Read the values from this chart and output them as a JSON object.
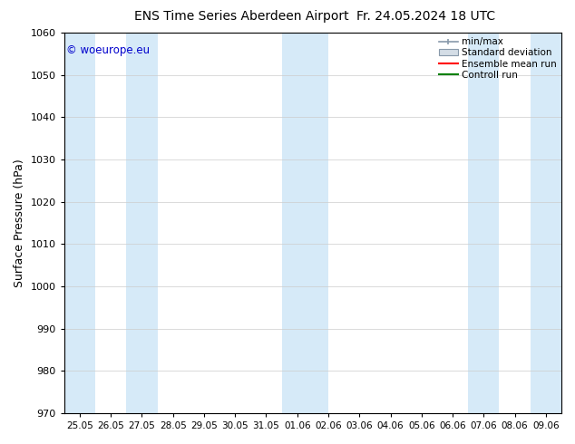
{
  "title": "ENS Time Series Aberdeen Airport",
  "title_right": "Fr. 24.05.2024 18 UTC",
  "ylabel": "Surface Pressure (hPa)",
  "watermark": "© woeurope.eu",
  "ylim": [
    970,
    1060
  ],
  "yticks": [
    970,
    980,
    990,
    1000,
    1010,
    1020,
    1030,
    1040,
    1050,
    1060
  ],
  "x_labels": [
    "25.05",
    "26.05",
    "27.05",
    "28.05",
    "29.05",
    "30.05",
    "31.05",
    "01.06",
    "02.06",
    "03.06",
    "04.06",
    "05.06",
    "06.06",
    "07.06",
    "08.06",
    "09.06"
  ],
  "n_ticks": 16,
  "band_color": "#d6eaf8",
  "bg_color": "#ffffff",
  "grid_color": "#cccccc",
  "ensemble_mean_color": "#ff0000",
  "control_run_color": "#008000",
  "std_dev_color": "#d4dde6",
  "minmax_edge_color": "#8899aa",
  "legend_labels": [
    "min/max",
    "Standard deviation",
    "Ensemble mean run",
    "Controll run"
  ],
  "watermark_color": "#0000cc",
  "title_fontsize": 10,
  "tick_fontsize": 8,
  "ylabel_fontsize": 9
}
